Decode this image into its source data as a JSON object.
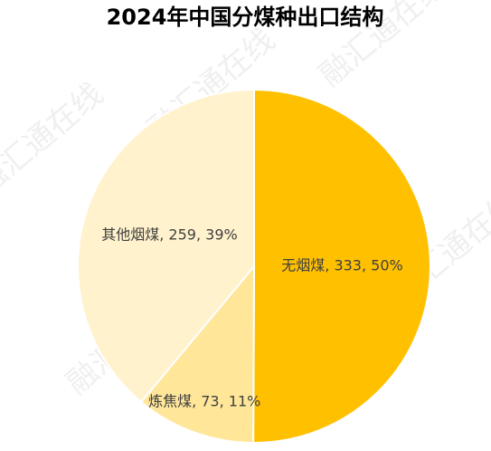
{
  "chart_data": {
    "type": "pie",
    "title": "2024年中国分煤种出口结构",
    "values": [
      333,
      73,
      259
    ],
    "value_labels": [
      "无烟煤, 333, 50%",
      "炼焦煤, 73, 11%",
      "其他烟煤, 259, 39%"
    ],
    "colors": [
      "#FFC000",
      "#FFE699",
      "#FFF2CC"
    ],
    "watermark": "融汇通在线"
  }
}
